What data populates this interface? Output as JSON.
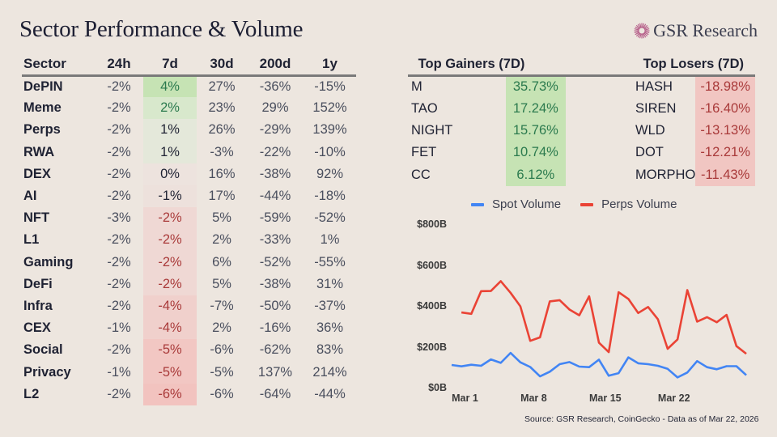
{
  "header": {
    "title": "Sector Performance & Volume",
    "brand": "GSR Research",
    "brand_icon": "sunburst-logo-icon"
  },
  "sector_table": {
    "columns": [
      "Sector",
      "24h",
      "7d",
      "30d",
      "200d",
      "1y"
    ],
    "rows": [
      {
        "sector": "DePIN",
        "h24": "-2%",
        "d7": "4%",
        "d30": "27%",
        "d200": "-36%",
        "y1": "-15%",
        "d7_bg": "#c6e3b4",
        "d7_color": "#2b7a4e"
      },
      {
        "sector": "Meme",
        "h24": "-2%",
        "d7": "2%",
        "d30": "23%",
        "d200": "29%",
        "y1": "152%",
        "d7_bg": "#d8e8cc",
        "d7_color": "#2b7a4e"
      },
      {
        "sector": "Perps",
        "h24": "-2%",
        "d7": "1%",
        "d30": "26%",
        "d200": "-29%",
        "y1": "139%",
        "d7_bg": "#e4e8da",
        "d7_color": "#1f2233"
      },
      {
        "sector": "RWA",
        "h24": "-2%",
        "d7": "1%",
        "d30": "-3%",
        "d200": "-22%",
        "y1": "-10%",
        "d7_bg": "#e4e8da",
        "d7_color": "#1f2233"
      },
      {
        "sector": "DEX",
        "h24": "-2%",
        "d7": "0%",
        "d30": "16%",
        "d200": "-38%",
        "y1": "92%",
        "d7_bg": "#ede3de",
        "d7_color": "#1f2233"
      },
      {
        "sector": "AI",
        "h24": "-2%",
        "d7": "-1%",
        "d30": "17%",
        "d200": "-44%",
        "y1": "-18%",
        "d7_bg": "#ede1dc",
        "d7_color": "#1f2233"
      },
      {
        "sector": "NFT",
        "h24": "-3%",
        "d7": "-2%",
        "d30": "5%",
        "d200": "-59%",
        "y1": "-52%",
        "d7_bg": "#efd8d4",
        "d7_color": "#a93a3a"
      },
      {
        "sector": "L1",
        "h24": "-2%",
        "d7": "-2%",
        "d30": "2%",
        "d200": "-33%",
        "y1": "1%",
        "d7_bg": "#efd8d4",
        "d7_color": "#a93a3a"
      },
      {
        "sector": "Gaming",
        "h24": "-2%",
        "d7": "-2%",
        "d30": "6%",
        "d200": "-52%",
        "y1": "-55%",
        "d7_bg": "#efd8d4",
        "d7_color": "#a93a3a"
      },
      {
        "sector": "DeFi",
        "h24": "-2%",
        "d7": "-2%",
        "d30": "5%",
        "d200": "-38%",
        "y1": "31%",
        "d7_bg": "#efd8d4",
        "d7_color": "#a93a3a"
      },
      {
        "sector": "Infra",
        "h24": "-2%",
        "d7": "-4%",
        "d30": "-7%",
        "d200": "-50%",
        "y1": "-37%",
        "d7_bg": "#f0d0cc",
        "d7_color": "#a93a3a"
      },
      {
        "sector": "CEX",
        "h24": "-1%",
        "d7": "-4%",
        "d30": "2%",
        "d200": "-16%",
        "y1": "36%",
        "d7_bg": "#f0d0cc",
        "d7_color": "#a93a3a"
      },
      {
        "sector": "Social",
        "h24": "-2%",
        "d7": "-5%",
        "d30": "-6%",
        "d200": "-62%",
        "y1": "83%",
        "d7_bg": "#f2c7c3",
        "d7_color": "#a93a3a"
      },
      {
        "sector": "Privacy",
        "h24": "-1%",
        "d7": "-5%",
        "d30": "-5%",
        "d200": "137%",
        "y1": "214%",
        "d7_bg": "#f2c7c3",
        "d7_color": "#a93a3a"
      },
      {
        "sector": "L2",
        "h24": "-2%",
        "d7": "-6%",
        "d30": "-6%",
        "d200": "-64%",
        "y1": "-44%",
        "d7_bg": "#f2c3bf",
        "d7_color": "#a93a3a"
      }
    ]
  },
  "movers": {
    "gainers_title": "Top Gainers (7D)",
    "losers_title": "Top Losers (7D)",
    "rows": [
      {
        "gainer": "M",
        "gain": "35.73%",
        "loser": "HASH",
        "loss": "-18.98%"
      },
      {
        "gainer": "TAO",
        "gain": "17.24%",
        "loser": "SIREN",
        "loss": "-16.40%"
      },
      {
        "gainer": "NIGHT",
        "gain": "15.76%",
        "loser": "WLD",
        "loss": "-13.13%"
      },
      {
        "gainer": "FET",
        "gain": "10.74%",
        "loser": "DOT",
        "loss": "-12.21%"
      },
      {
        "gainer": "CC",
        "gain": "6.12%",
        "loser": "MORPHO",
        "loss": "-11.43%"
      }
    ]
  },
  "chart_data": {
    "type": "line",
    "title": "",
    "xlabel": "",
    "ylabel": "",
    "ylim": [
      0,
      800
    ],
    "yticks": [
      0,
      200,
      400,
      600,
      800
    ],
    "ytick_labels": [
      "$0B",
      "$200B",
      "$400B",
      "$600B",
      "$800B"
    ],
    "x_index_range": [
      0,
      30
    ],
    "xticks": [
      {
        "index": 1,
        "label": "Mar 1"
      },
      {
        "index": 8,
        "label": "Mar 8"
      },
      {
        "index": 15,
        "label": "Mar 15"
      },
      {
        "index": 22,
        "label": "Mar 22"
      }
    ],
    "grid": false,
    "legend": "top",
    "series": [
      {
        "name": "Spot Volume",
        "color": "#4285f4",
        "start_index": 0,
        "values": [
          115,
          108,
          116,
          111,
          142,
          125,
          174,
          128,
          105,
          59,
          82,
          119,
          129,
          107,
          104,
          141,
          62,
          75,
          152,
          123,
          119,
          111,
          96,
          54,
          78,
          134,
          104,
          94,
          109,
          109,
          65
        ]
      },
      {
        "name": "Perps Volume",
        "color": "#ea4335",
        "start_index": 1,
        "values": [
          372,
          365,
          476,
          477,
          525,
          468,
          402,
          233,
          250,
          426,
          432,
          386,
          358,
          451,
          224,
          178,
          471,
          438,
          369,
          399,
          339,
          194,
          240,
          481,
          327,
          349,
          324,
          360,
          207,
          170
        ]
      }
    ]
  },
  "footer": {
    "source": "Source: GSR Research, CoinGecko - Data as of Mar 22, 2026"
  }
}
